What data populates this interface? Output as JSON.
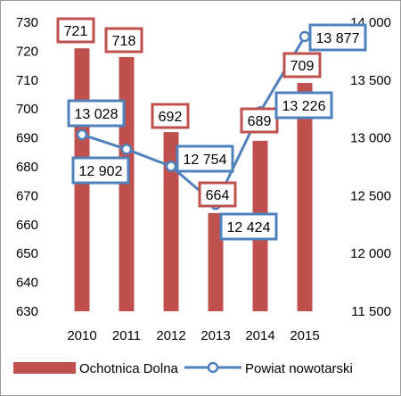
{
  "chart_data": {
    "type": "bar+line",
    "categories": [
      "2010",
      "2011",
      "2012",
      "2013",
      "2014",
      "2015"
    ],
    "series": [
      {
        "name": "Ochotnica Dolna",
        "type": "bar",
        "axis": "left",
        "color": "#C0504D",
        "values": [
          721,
          718,
          692,
          664,
          689,
          709
        ],
        "labels": [
          "721",
          "718",
          "692",
          "664",
          "689",
          "709"
        ]
      },
      {
        "name": "Powiat nowotarski",
        "type": "line",
        "axis": "right",
        "color": "#4F81BD",
        "values": [
          13028,
          12902,
          12754,
          12424,
          13226,
          13877
        ],
        "labels": [
          "13 028",
          "12 902",
          "12 754",
          "12 424",
          "13 226",
          "13 877"
        ]
      }
    ],
    "y_left": {
      "min": 630,
      "max": 730,
      "step": 10,
      "ticks": [
        "630",
        "640",
        "650",
        "660",
        "670",
        "680",
        "690",
        "700",
        "710",
        "720",
        "730"
      ]
    },
    "y_right": {
      "min": 11500,
      "max": 14000,
      "step": 500,
      "ticks": [
        "11 500",
        "12 000",
        "12 500",
        "13 000",
        "13 500",
        "14 000"
      ]
    },
    "grid": false,
    "legend": "bottom",
    "title": "",
    "xlabel": "",
    "ylabel": ""
  }
}
